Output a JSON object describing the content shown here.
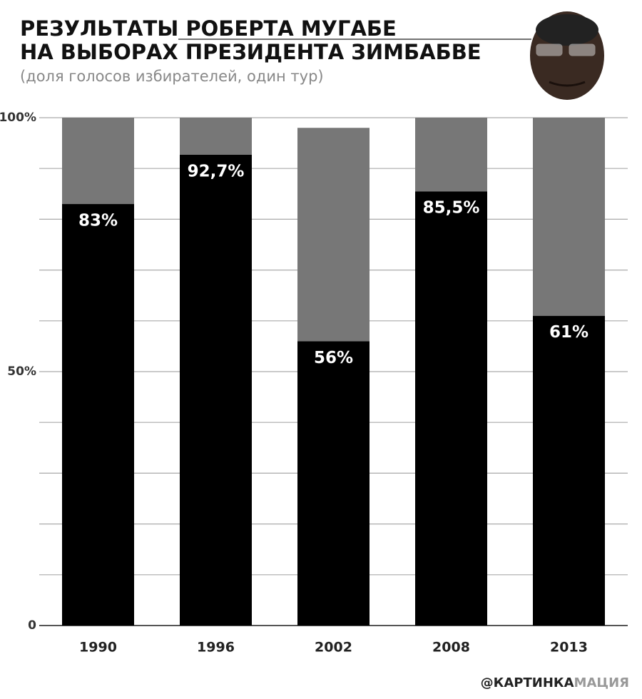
{
  "chart_data": {
    "type": "stacked_bar",
    "title": [
      "РЕЗУЛЬТАТЫ РОБЕРТА МУГАБЕ",
      "НА ВЫБОРАХ ПРЕЗИДЕНТА ЗИМБАБВЕ"
    ],
    "subtitle": "(доля голосов избирателей, один тур)",
    "source": [
      "@КАРТИНКА",
      "МАЦИЯ"
    ],
    "categories": [
      "1990",
      "1996",
      "2002",
      "2008",
      "2013"
    ],
    "series": [
      {
        "color": "#000000",
        "values": [
          83,
          92.7,
          56,
          85.5,
          61
        ],
        "value_labels": [
          "83%",
          "92,7%",
          "56%",
          "85,5%",
          "61%"
        ]
      },
      {
        "color": "#777777",
        "values": [
          17,
          7.3,
          42,
          14.5,
          39
        ]
      }
    ],
    "ylim": [
      0,
      100
    ],
    "yticks": [
      0,
      {
        "value": 50,
        "label": "50%"
      },
      {
        "value": 100,
        "label": "100%"
      }
    ],
    "minor_yticks": [
      10,
      20,
      30,
      40,
      60,
      70,
      80,
      90
    ],
    "grid": true
  }
}
